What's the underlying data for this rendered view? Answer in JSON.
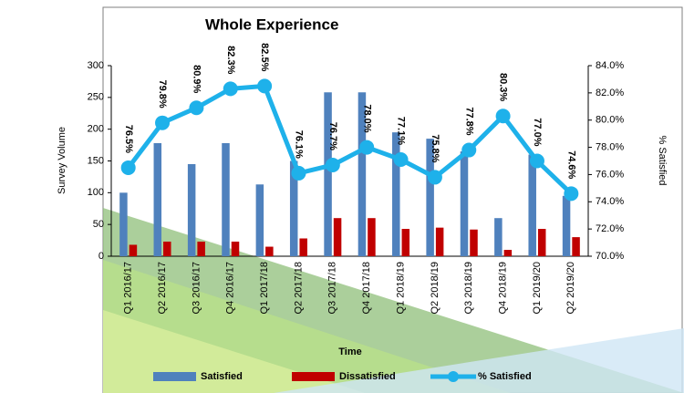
{
  "chart_data": {
    "type": "bar-line",
    "title": "Whole Experience",
    "x_label": "Time",
    "y_label": "Survey Volume",
    "y2_label": "% Satisfied",
    "categories": [
      "Q1 2016/17",
      "Q2 2016/17",
      "Q3 2016/17",
      "Q4 2016/17",
      "Q1 2017/18",
      "Q2 2017/18",
      "Q3 2017/18",
      "Q4 2017/18",
      "Q1 2018/19",
      "Q2 2018/19",
      "Q3 2018/19",
      "Q4 2018/19",
      "Q1 2019/20",
      "Q2 2019/20"
    ],
    "series": [
      {
        "name": "Satisfied",
        "type": "bar",
        "color": "#4f81bd",
        "values": [
          100,
          178,
          145,
          178,
          113,
          150,
          258,
          258,
          195,
          185,
          165,
          60,
          160,
          95
        ]
      },
      {
        "name": "Dissatisfied",
        "type": "bar",
        "color": "#c00000",
        "values": [
          18,
          23,
          23,
          23,
          15,
          28,
          60,
          60,
          43,
          45,
          42,
          10,
          43,
          30
        ]
      },
      {
        "name": "% Satisfied",
        "type": "line",
        "axis": "y2",
        "color": "#1eb1ea",
        "values": [
          76.5,
          79.8,
          80.9,
          82.3,
          82.5,
          76.1,
          76.7,
          78.0,
          77.1,
          75.8,
          77.8,
          80.3,
          77.0,
          74.6
        ],
        "value_labels": [
          "76.5%",
          "79.8%",
          "80.9%",
          "82.3%",
          "82.5%",
          "76.1%",
          "76.7%",
          "78.0%",
          "77.1%",
          "75.8%",
          "77.8%",
          "80.3%",
          "77.0%",
          "74.6%"
        ]
      }
    ],
    "ylim": [
      0,
      300
    ],
    "yticks": [
      0,
      50,
      100,
      150,
      200,
      250,
      300
    ],
    "y2lim": [
      70,
      84
    ],
    "y2ticks": [
      {
        "value": 70,
        "label": "70.0%"
      },
      {
        "value": 72,
        "label": "72.0%"
      },
      {
        "value": 74,
        "label": "74.0%"
      },
      {
        "value": 76,
        "label": "76.0%"
      },
      {
        "value": 78,
        "label": "78.0%"
      },
      {
        "value": 80,
        "label": "80.0%"
      },
      {
        "value": 82,
        "label": "82.0%"
      },
      {
        "value": 84,
        "label": "84.0%"
      }
    ]
  }
}
